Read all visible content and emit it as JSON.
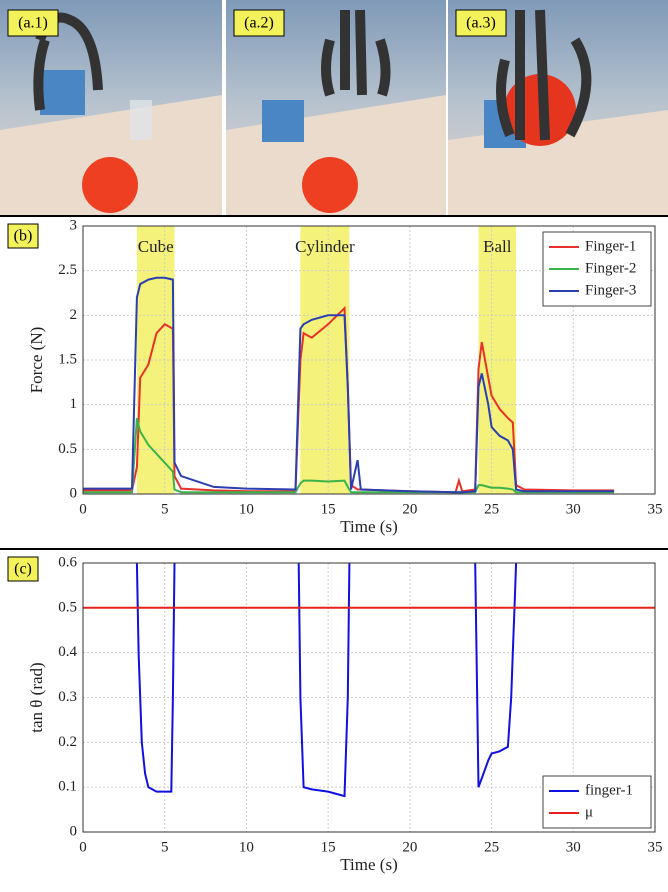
{
  "photos": {
    "labels": [
      "(a.1)",
      "(a.2)",
      "(a.3)"
    ]
  },
  "chart_data": [
    {
      "type": "line",
      "panel_label": "(b)",
      "xlabel": "Time  (s)",
      "ylabel": "Force  (N)",
      "xlim": [
        0,
        35
      ],
      "xticks": [
        0,
        5,
        10,
        15,
        20,
        25,
        30,
        35
      ],
      "ylim": [
        0,
        3
      ],
      "yticks": [
        0,
        0.5,
        1,
        1.5,
        2,
        2.5,
        3
      ],
      "grid": true,
      "legend": "upper right",
      "highlight_color": "#f4f27a",
      "highlights": [
        {
          "label": "Cube",
          "x": [
            3.3,
            5.6
          ]
        },
        {
          "label": "Cylinder",
          "x": [
            13.3,
            16.3
          ]
        },
        {
          "label": "Ball",
          "x": [
            24.2,
            26.5
          ]
        }
      ],
      "x": [
        0,
        3,
        3.3,
        3.5,
        4,
        4.5,
        5,
        5.5,
        5.6,
        6,
        8,
        10,
        13,
        13.3,
        13.5,
        14,
        15,
        16,
        16.2,
        16.4,
        16.8,
        17,
        20,
        22.8,
        23,
        23.2,
        24,
        24.2,
        24.4,
        24.8,
        25,
        25.5,
        26,
        26.3,
        26.5,
        27,
        30,
        32.5
      ],
      "series": [
        {
          "name": "Finger-1",
          "color": "#e8312a",
          "values": [
            0.04,
            0.04,
            0.3,
            1.3,
            1.45,
            1.8,
            1.9,
            1.85,
            0.2,
            0.06,
            0.04,
            0.03,
            0.03,
            1.5,
            1.8,
            1.75,
            1.9,
            2.08,
            1.2,
            0.1,
            0.05,
            0.05,
            0.03,
            0.02,
            0.15,
            0.03,
            0.05,
            1.4,
            1.7,
            1.3,
            1.1,
            0.95,
            0.85,
            0.8,
            0.1,
            0.05,
            0.04,
            0.04
          ]
        },
        {
          "name": "Finger-2",
          "color": "#3cb34a",
          "values": [
            0.02,
            0.02,
            0.85,
            0.7,
            0.55,
            0.45,
            0.35,
            0.25,
            0.05,
            0.02,
            0.02,
            0.02,
            0.02,
            0.12,
            0.15,
            0.15,
            0.14,
            0.15,
            0.08,
            0.02,
            0.02,
            0.02,
            0.02,
            0.02,
            0.02,
            0.02,
            0.02,
            0.1,
            0.1,
            0.08,
            0.07,
            0.07,
            0.06,
            0.05,
            0.02,
            0.02,
            0.02,
            0.02
          ]
        },
        {
          "name": "Finger-3",
          "color": "#2b3fb0",
          "values": [
            0.06,
            0.06,
            2.2,
            2.35,
            2.4,
            2.42,
            2.42,
            2.4,
            0.35,
            0.2,
            0.08,
            0.06,
            0.05,
            1.85,
            1.9,
            1.95,
            2.0,
            2.0,
            1.2,
            0.05,
            0.38,
            0.05,
            0.03,
            0.02,
            0.02,
            0.02,
            0.03,
            1.2,
            1.35,
            1.0,
            0.75,
            0.65,
            0.6,
            0.5,
            0.05,
            0.03,
            0.03,
            0.03
          ]
        }
      ]
    },
    {
      "type": "line",
      "panel_label": "(c)",
      "xlabel": "Time  (s)",
      "ylabel": "tan θ   (rad)",
      "xlim": [
        0,
        35
      ],
      "xticks": [
        0,
        5,
        10,
        15,
        20,
        25,
        30,
        35
      ],
      "ylim": [
        0,
        0.6
      ],
      "yticks": [
        0,
        0.1,
        0.2,
        0.3,
        0.4,
        0.5,
        0.6
      ],
      "grid": true,
      "legend": "lower right",
      "series": [
        {
          "name": "finger-1",
          "color": "#1010e0",
          "x": [
            3.3,
            3.4,
            3.6,
            3.8,
            4,
            4.5,
            5,
            5.4,
            5.5,
            5.6,
            9,
            13.2,
            13.3,
            13.5,
            14,
            15,
            15.5,
            16,
            16.2,
            16.3,
            20,
            24,
            24.2,
            24.4,
            24.8,
            25,
            25.5,
            26,
            26.2,
            26.3,
            26.4,
            26.5
          ],
          "values": [
            0.6,
            0.4,
            0.2,
            0.13,
            0.1,
            0.09,
            0.09,
            0.09,
            0.3,
            0.6,
            null,
            0.6,
            0.3,
            0.1,
            0.095,
            0.09,
            0.085,
            0.08,
            0.3,
            0.6,
            null,
            0.6,
            0.1,
            0.12,
            0.16,
            0.175,
            0.18,
            0.19,
            0.3,
            0.4,
            0.5,
            0.6
          ]
        },
        {
          "name": "μ",
          "color": "#e8201c",
          "x": [
            0,
            35
          ],
          "values": [
            0.5,
            0.5
          ]
        }
      ]
    }
  ]
}
